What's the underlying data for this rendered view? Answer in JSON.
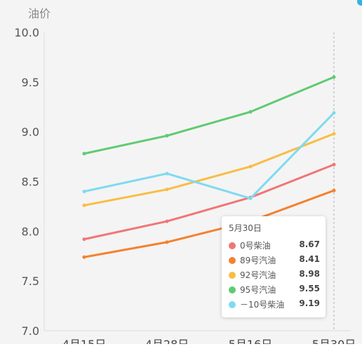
{
  "chart_data": {
    "type": "line",
    "ylabel": "油价",
    "categories": [
      "4月15日",
      "4月28日",
      "5月16日",
      "5月30日"
    ],
    "ylim": [
      7.0,
      10.0
    ],
    "yticks": [
      "7.0",
      "7.5",
      "8.0",
      "8.5",
      "9.0",
      "9.5",
      "10.0"
    ],
    "series": [
      {
        "name": "0号柴油",
        "color": "#f27575",
        "values": [
          7.92,
          8.1,
          8.34,
          8.67
        ]
      },
      {
        "name": "89号汽油",
        "color": "#f5812f",
        "values": [
          7.74,
          7.89,
          8.1,
          8.41
        ]
      },
      {
        "name": "92号汽油",
        "color": "#f8bd44",
        "values": [
          8.26,
          8.42,
          8.65,
          8.98
        ]
      },
      {
        "name": "95号汽油",
        "color": "#5fcb72",
        "values": [
          8.78,
          8.96,
          9.2,
          9.55
        ]
      },
      {
        "name": "－10号柴油",
        "color": "#7fdaf0",
        "values": [
          8.4,
          8.58,
          8.33,
          9.19
        ]
      }
    ],
    "tooltip": {
      "title": "5月30日",
      "rows": [
        {
          "name": "0号柴油",
          "value": "8.67",
          "color": "#f27575"
        },
        {
          "name": "89号汽油",
          "value": "8.41",
          "color": "#f5812f"
        },
        {
          "name": "92号汽油",
          "value": "8.98",
          "color": "#f8bd44"
        },
        {
          "name": "95号汽油",
          "value": "9.55",
          "color": "#5fcb72"
        },
        {
          "name": "－10号柴油",
          "value": "9.19",
          "color": "#7fdaf0"
        }
      ]
    },
    "grid": false,
    "legend": "none"
  }
}
